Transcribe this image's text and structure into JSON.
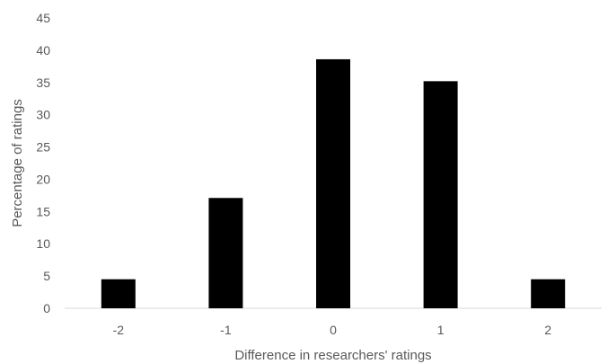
{
  "chart_data": {
    "type": "bar",
    "title": "",
    "xlabel": "Difference in researchers' ratings",
    "ylabel": "Percentage of ratings",
    "categories": [
      "-2",
      "-1",
      "0",
      "1",
      "2"
    ],
    "values": [
      4.5,
      17.1,
      38.6,
      35.2,
      4.5
    ],
    "ylim": [
      0,
      45
    ],
    "yticks": [
      0,
      5,
      10,
      15,
      20,
      25,
      30,
      35,
      40,
      45
    ],
    "grid": false,
    "legend": "none",
    "colors": {
      "bar": "#000000",
      "axis": "#d9d9d9",
      "text": "#595959"
    }
  }
}
